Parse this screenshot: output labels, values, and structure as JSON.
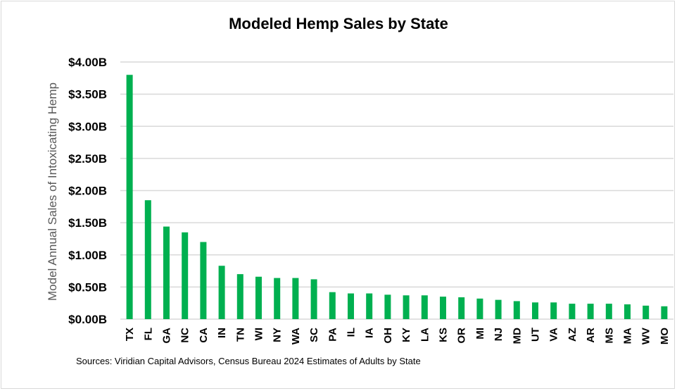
{
  "chart_data": {
    "type": "bar",
    "title": "Modeled Hemp Sales by State",
    "xlabel": "",
    "ylabel": "Model Annual Sales of Intoxicating Hemp",
    "ylim": [
      0,
      4.0
    ],
    "yticks": [
      0,
      0.5,
      1.0,
      1.5,
      2.0,
      2.5,
      3.0,
      3.5,
      4.0
    ],
    "ytick_labels": [
      "$0.00B",
      "$0.50B",
      "$1.00B",
      "$1.50B",
      "$2.00B",
      "$2.50B",
      "$3.00B",
      "$3.50B",
      "$4.00B"
    ],
    "grid": true,
    "legend": "none",
    "unit": "billions USD",
    "categories": [
      "TX",
      "FL",
      "GA",
      "NC",
      "CA",
      "IN",
      "TN",
      "WI",
      "NY",
      "WA",
      "SC",
      "PA",
      "IL",
      "IA",
      "OH",
      "KY",
      "LA",
      "KS",
      "OR",
      "MI",
      "NJ",
      "MD",
      "UT",
      "VA",
      "AZ",
      "AR",
      "MS",
      "MA",
      "WV",
      "MO"
    ],
    "values": [
      3.8,
      1.85,
      1.44,
      1.35,
      1.2,
      0.83,
      0.7,
      0.66,
      0.64,
      0.64,
      0.62,
      0.42,
      0.4,
      0.4,
      0.38,
      0.37,
      0.37,
      0.35,
      0.34,
      0.32,
      0.3,
      0.28,
      0.26,
      0.26,
      0.24,
      0.24,
      0.24,
      0.23,
      0.21,
      0.2
    ],
    "bar_color": "#00B050",
    "grid_color": "#D9D9D9",
    "source": "Sources: Viridian Capital Advisors, Census Bureau 2024 Estimates of Adults by State"
  }
}
